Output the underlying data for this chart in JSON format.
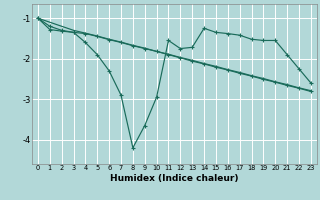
{
  "xlabel": "Humidex (Indice chaleur)",
  "background_color": "#b2d8d8",
  "grid_color": "#ffffff",
  "line_color": "#1a6b5a",
  "xlim": [
    -0.5,
    23.5
  ],
  "ylim": [
    -4.6,
    -0.65
  ],
  "yticks": [
    -1,
    -2,
    -3,
    -4
  ],
  "xticks": [
    0,
    1,
    2,
    3,
    4,
    5,
    6,
    7,
    8,
    9,
    10,
    11,
    12,
    13,
    14,
    15,
    16,
    17,
    18,
    19,
    20,
    21,
    22,
    23
  ],
  "line1_x": [
    0,
    1,
    2,
    3,
    4,
    5,
    6,
    7,
    8,
    9,
    10,
    11,
    12,
    13,
    14,
    15,
    16,
    17,
    18,
    19,
    20,
    21,
    22,
    23
  ],
  "line1_y": [
    -1.0,
    -1.1,
    -1.2,
    -1.3,
    -1.37,
    -1.44,
    -1.52,
    -1.59,
    -1.67,
    -1.74,
    -1.82,
    -1.89,
    -1.97,
    -2.04,
    -2.12,
    -2.19,
    -2.27,
    -2.34,
    -2.42,
    -2.49,
    -2.57,
    -2.64,
    -2.72,
    -2.79
  ],
  "line2_x": [
    0,
    1,
    2,
    3,
    4,
    5,
    6,
    7,
    8,
    9,
    10,
    11,
    12,
    13,
    14,
    15,
    16,
    17,
    18,
    19,
    20,
    21,
    22,
    23
  ],
  "line2_y": [
    -1.0,
    -1.2,
    -1.3,
    -1.35,
    -1.6,
    -1.9,
    -2.3,
    -2.9,
    -4.2,
    -3.65,
    -2.95,
    -1.55,
    -1.75,
    -1.72,
    -1.25,
    -1.35,
    -1.38,
    -1.42,
    -1.52,
    -1.55,
    -1.55,
    -1.9,
    -2.25,
    -2.6
  ],
  "line3_x": [
    0,
    1,
    2,
    3,
    4,
    5,
    6,
    7,
    8,
    9,
    10,
    11,
    12,
    13,
    14,
    15,
    16,
    17,
    18,
    19,
    20,
    21,
    22,
    23
  ],
  "line3_y": [
    -1.0,
    -1.28,
    -1.32,
    -1.35,
    -1.38,
    -1.45,
    -1.53,
    -1.6,
    -1.68,
    -1.75,
    -1.82,
    -1.9,
    -1.98,
    -2.06,
    -2.13,
    -2.21,
    -2.28,
    -2.36,
    -2.43,
    -2.51,
    -2.58,
    -2.66,
    -2.73,
    -2.81
  ]
}
